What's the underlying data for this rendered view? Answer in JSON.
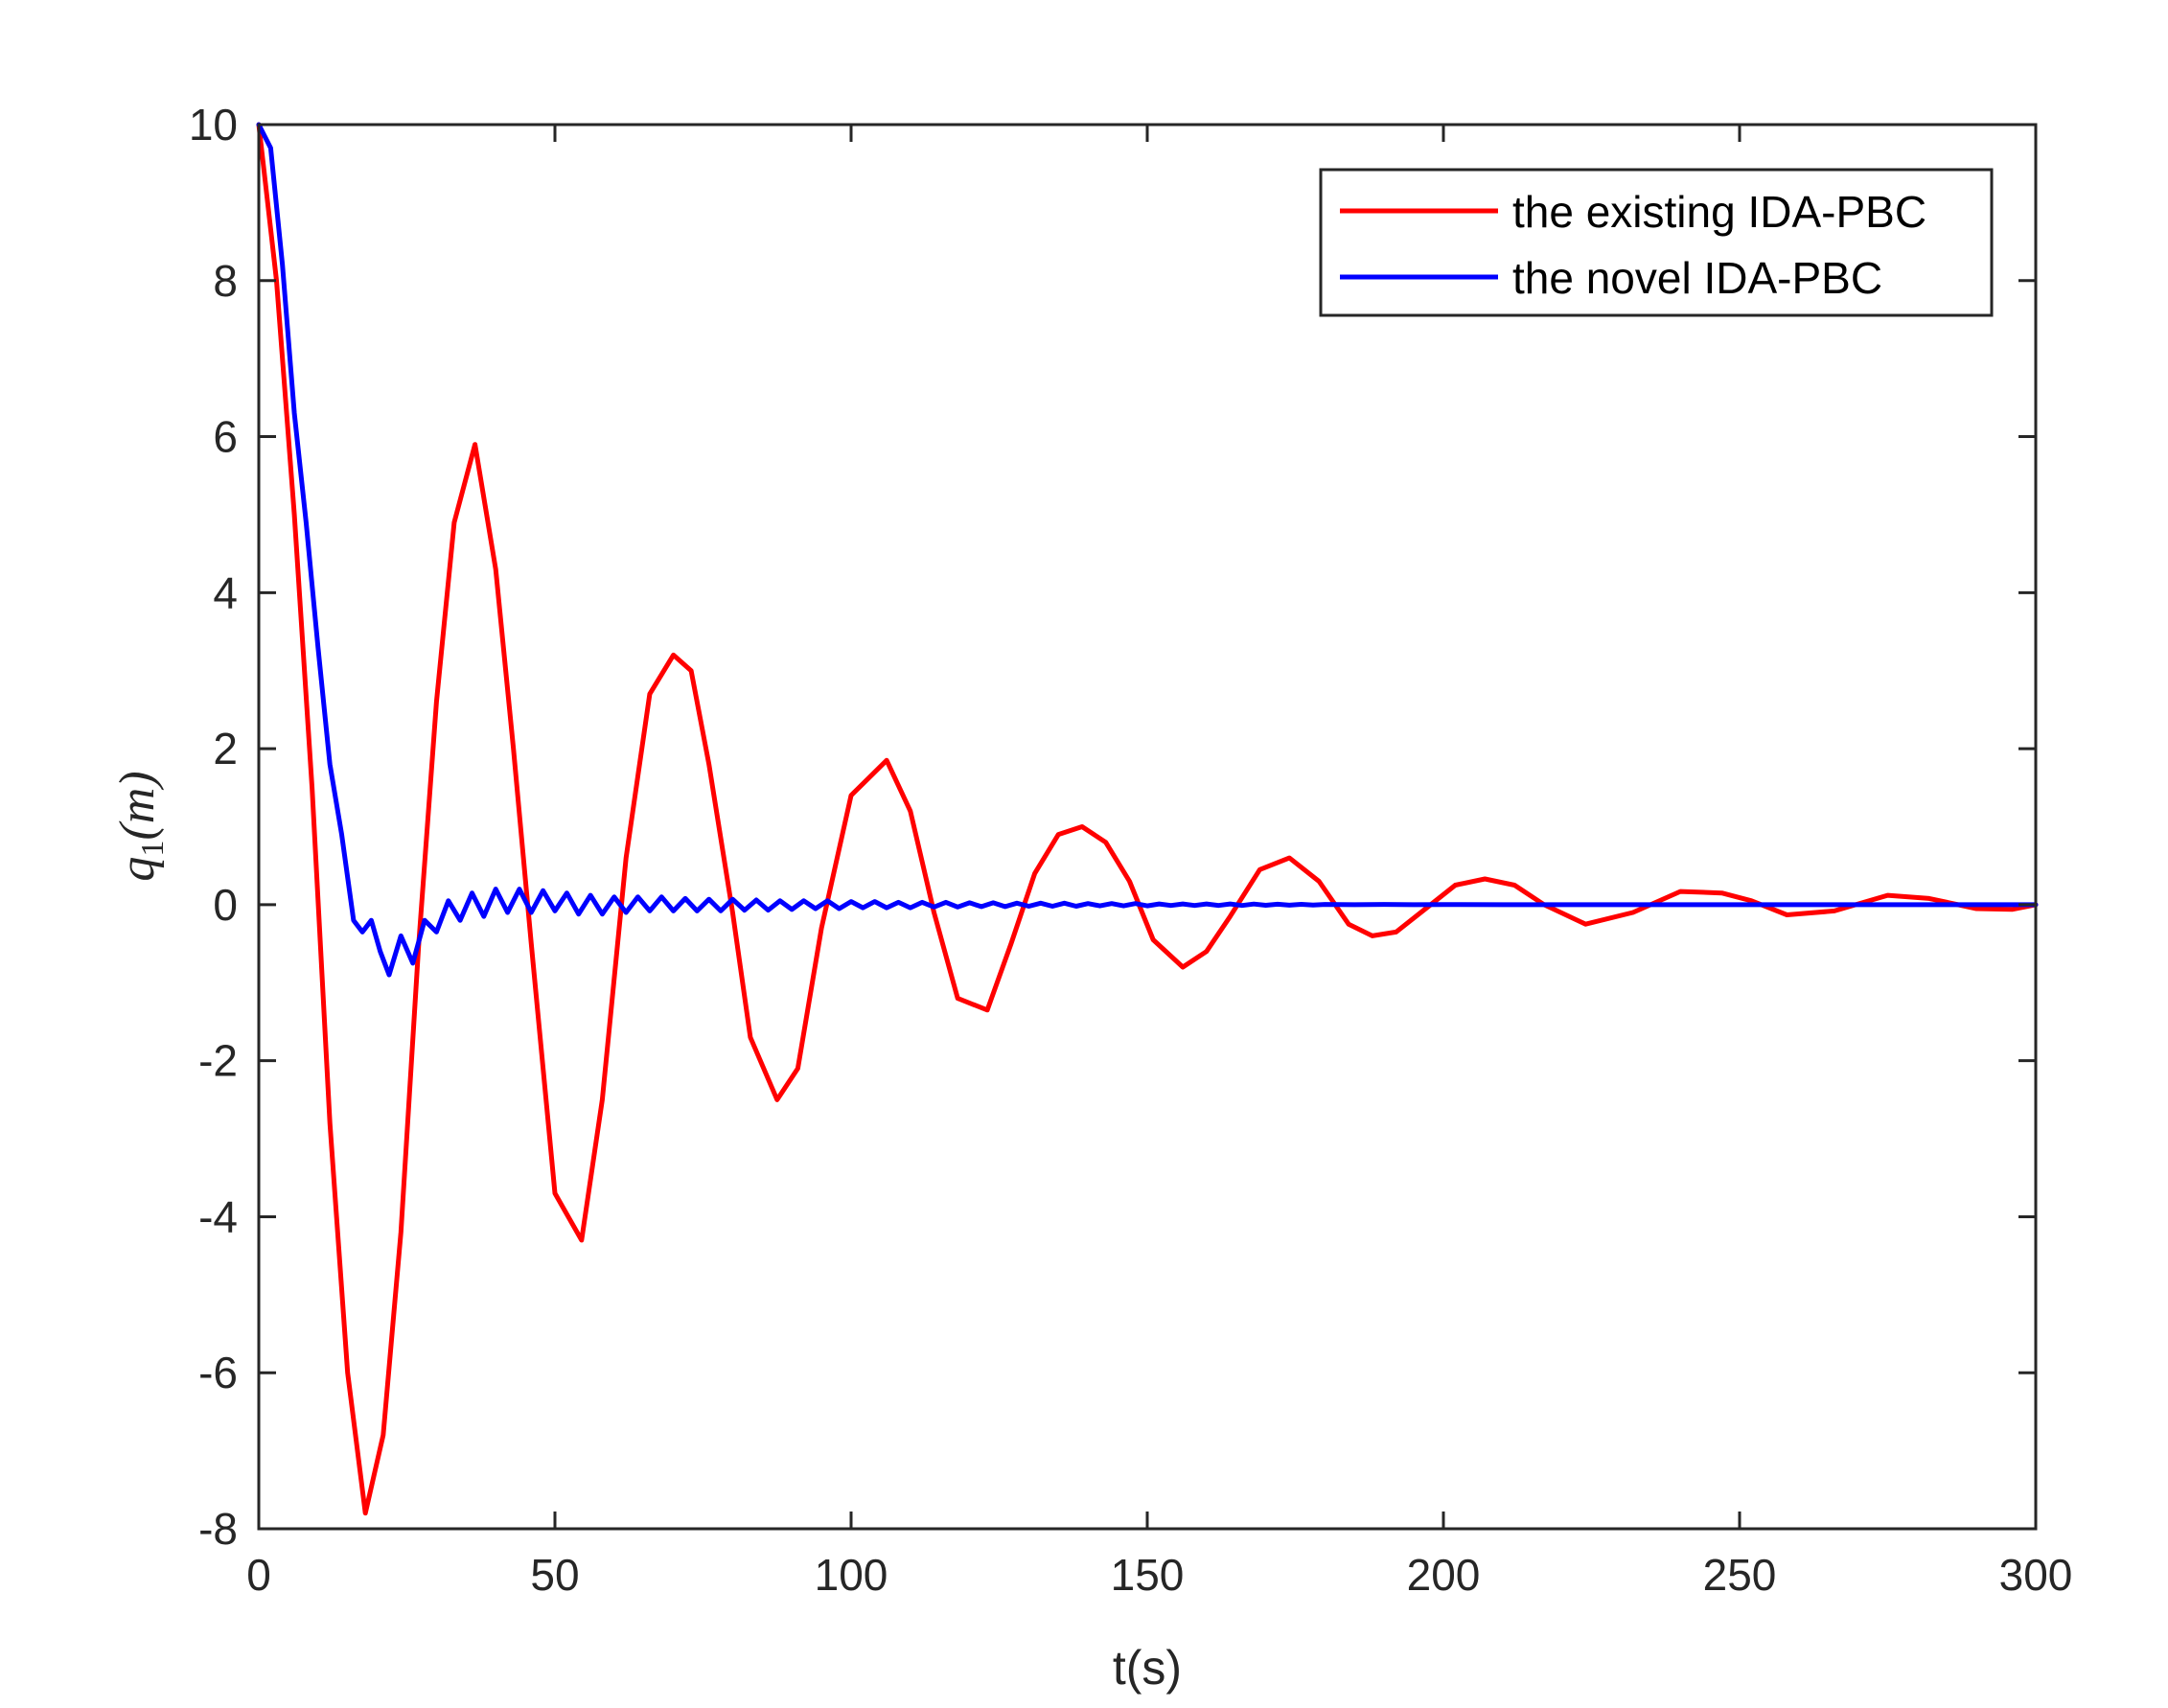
{
  "chart_data": {
    "type": "line",
    "xlabel": "t(s)",
    "ylabel": {
      "symbol": "q",
      "subscript": "1",
      "unit": "(m)"
    },
    "xlim": [
      0,
      300
    ],
    "ylim": [
      -8,
      10
    ],
    "xticks": [
      "0",
      "50",
      "100",
      "150",
      "200",
      "250",
      "300"
    ],
    "yticks": [
      "10",
      "8",
      "6",
      "4",
      "2",
      "0",
      "-2",
      "-4",
      "-6",
      "-8"
    ],
    "grid": false,
    "legend_position": "top-right",
    "series": [
      {
        "name": "the existing IDA-PBC",
        "color": "#ff0000",
        "x": [
          0,
          3,
          6,
          9,
          12,
          15,
          18,
          21,
          24,
          27,
          30,
          33,
          36.5,
          40,
          43,
          46,
          50,
          54.5,
          58,
          62,
          66,
          70,
          73,
          76,
          80,
          83,
          87.5,
          91,
          95,
          100,
          106,
          110,
          114,
          118,
          123,
          127,
          131,
          135,
          139,
          143,
          147,
          151,
          156,
          160,
          164,
          169,
          174,
          179,
          184,
          188,
          192,
          197,
          202,
          207,
          212,
          217,
          224,
          232,
          240,
          247,
          252,
          258,
          266,
          275,
          282,
          290,
          296,
          300
        ],
        "y": [
          10,
          8.0,
          5.0,
          1.5,
          -2.8,
          -6.0,
          -7.8,
          -6.8,
          -4.2,
          -0.5,
          2.6,
          4.9,
          5.9,
          4.3,
          2.0,
          -0.5,
          -3.7,
          -4.3,
          -2.5,
          0.6,
          2.7,
          3.2,
          3.0,
          1.8,
          -0.1,
          -1.7,
          -2.5,
          -2.1,
          -0.3,
          1.4,
          1.85,
          1.2,
          -0.1,
          -1.2,
          -1.35,
          -0.5,
          0.4,
          0.9,
          1.0,
          0.8,
          0.3,
          -0.45,
          -0.8,
          -0.6,
          -0.15,
          0.45,
          0.6,
          0.3,
          -0.25,
          -0.4,
          -0.35,
          -0.05,
          0.25,
          0.33,
          0.25,
          0.0,
          -0.25,
          -0.1,
          0.17,
          0.15,
          0.05,
          -0.13,
          -0.08,
          0.12,
          0.08,
          -0.05,
          -0.06,
          0.0
        ]
      },
      {
        "name": "the novel IDA-PBC",
        "color": "#0000ff",
        "x": [
          0,
          2,
          4,
          6,
          8,
          10,
          12,
          14,
          16,
          17.5,
          19,
          20.5,
          22,
          24,
          26,
          28,
          30,
          32,
          34,
          36,
          38,
          40,
          42,
          44,
          46,
          48,
          50,
          52,
          54,
          56,
          58,
          60,
          62,
          64,
          66,
          68,
          70,
          72,
          74,
          76,
          78,
          80,
          82,
          84,
          86,
          88,
          90,
          92,
          94,
          96,
          98,
          100,
          102,
          104,
          106,
          108,
          110,
          112,
          114,
          116,
          118,
          120,
          122,
          124,
          126,
          128,
          130,
          132,
          134,
          136,
          138,
          140,
          142,
          144,
          146,
          148,
          150,
          152,
          154,
          156,
          158,
          160,
          162,
          164,
          166,
          168,
          170,
          172,
          174,
          176,
          178,
          180,
          185,
          190,
          195,
          200,
          210,
          220,
          230,
          240,
          250,
          260,
          270,
          280,
          290,
          300
        ],
        "y": [
          10,
          9.7,
          8.2,
          6.3,
          4.9,
          3.3,
          1.8,
          0.9,
          -0.2,
          -0.35,
          -0.2,
          -0.6,
          -0.9,
          -0.4,
          -0.75,
          -0.2,
          -0.35,
          0.05,
          -0.2,
          0.15,
          -0.15,
          0.2,
          -0.1,
          0.2,
          -0.1,
          0.18,
          -0.08,
          0.15,
          -0.12,
          0.12,
          -0.12,
          0.1,
          -0.1,
          0.1,
          -0.08,
          0.1,
          -0.08,
          0.08,
          -0.08,
          0.07,
          -0.08,
          0.07,
          -0.07,
          0.06,
          -0.07,
          0.05,
          -0.06,
          0.05,
          -0.05,
          0.05,
          -0.05,
          0.04,
          -0.04,
          0.04,
          -0.04,
          0.03,
          -0.04,
          0.03,
          -0.03,
          0.03,
          -0.03,
          0.025,
          -0.025,
          0.025,
          -0.025,
          0.02,
          -0.02,
          0.02,
          -0.02,
          0.02,
          -0.02,
          0.015,
          -0.015,
          0.015,
          -0.015,
          0.015,
          -0.015,
          0.01,
          -0.01,
          0.01,
          -0.01,
          0.01,
          -0.01,
          0.01,
          -0.01,
          0.008,
          -0.008,
          0.006,
          -0.006,
          0.005,
          -0.005,
          0.004,
          0.0,
          0.003,
          0.0,
          0.002,
          0.0,
          0.0,
          0.0,
          0.0,
          0.0,
          0.0,
          0.0,
          0.0,
          0.0,
          0.0
        ]
      }
    ]
  }
}
